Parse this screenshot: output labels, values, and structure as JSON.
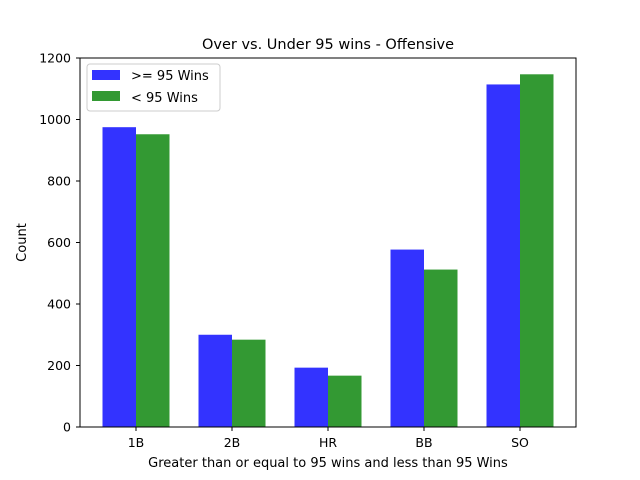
{
  "chart_data": {
    "type": "bar",
    "title": "Over vs. Under 95 wins - Offensive",
    "xlabel": "Greater than or equal to 95 wins and less than 95 Wins",
    "ylabel": "Count",
    "categories": [
      "1B",
      "2B",
      "HR",
      "BB",
      "SO"
    ],
    "series": [
      {
        "name": ">= 95 Wins",
        "color": "#3333ff",
        "values": [
          975,
          300,
          193,
          577,
          1114
        ]
      },
      {
        "name": "< 95 Wins",
        "color": "#339933",
        "values": [
          952,
          284,
          167,
          512,
          1147
        ]
      }
    ],
    "ylim": [
      0,
      1200
    ],
    "yticks": [
      0,
      200,
      400,
      600,
      800,
      1000,
      1200
    ],
    "ytick_labels": [
      "0",
      "200",
      "400",
      "600",
      "800",
      "1000",
      "1200"
    ],
    "grid": false,
    "legend_position": "top-left"
  }
}
